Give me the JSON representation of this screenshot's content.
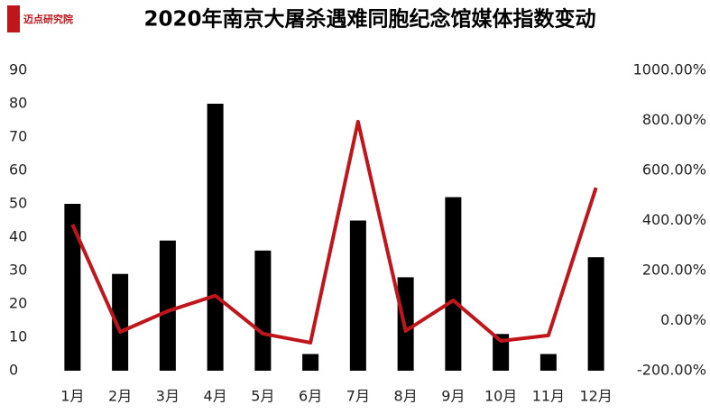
{
  "logo": "迈点研究院",
  "chart_data": {
    "type": "bar-line",
    "title": "2020年南京大屠杀遇难同胞纪念馆媒体指数变动",
    "categories": [
      "1月",
      "2月",
      "3月",
      "4月",
      "5月",
      "6月",
      "7月",
      "8月",
      "9月",
      "10月",
      "11月",
      "12月"
    ],
    "series": [
      {
        "type": "bar",
        "color": "#000000",
        "values": [
          50,
          29,
          39,
          80,
          36,
          5,
          45,
          28,
          52,
          11,
          5,
          34
        ]
      },
      {
        "type": "line",
        "axis": "y2",
        "color": "#c0151b",
        "values": [
          384,
          -45,
          38,
          100,
          -52,
          -88,
          795,
          -41,
          81,
          -81,
          -59,
          531
        ]
      }
    ],
    "ylim": [
      0,
      90
    ],
    "yticks": [
      0,
      10,
      20,
      30,
      40,
      50,
      60,
      70,
      80,
      90
    ],
    "y2lim": [
      -200,
      1000
    ],
    "y2ticks": [
      {
        "value": -200,
        "label": "-200.00%"
      },
      {
        "value": 0,
        "label": "0.00%"
      },
      {
        "value": 200,
        "label": "200.00%"
      },
      {
        "value": 400,
        "label": "400.00%"
      },
      {
        "value": 600,
        "label": "600.00%"
      },
      {
        "value": 800,
        "label": "800.00%"
      },
      {
        "value": 1000,
        "label": "1000.00%"
      }
    ],
    "grid": false
  }
}
